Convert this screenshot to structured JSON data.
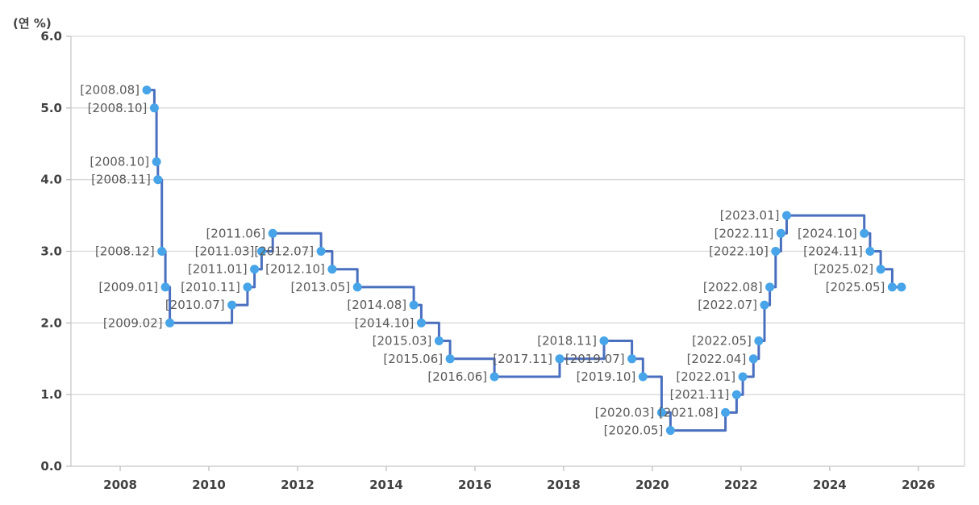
{
  "chart_data": {
    "type": "step-line",
    "title": "",
    "ylabel": "(연 %)",
    "xlabel": "",
    "xlim": [
      2006.89,
      2027.04
    ],
    "ylim": [
      0.0,
      6.0
    ],
    "x_ticks": [
      2008,
      2010,
      2012,
      2014,
      2016,
      2018,
      2020,
      2022,
      2024,
      2026
    ],
    "y_ticks": [
      0,
      1,
      2,
      3,
      4,
      5,
      6
    ],
    "y_tick_labels": [
      "0.0",
      "1.0",
      "2.0",
      "3.0",
      "4.0",
      "5.0",
      "6.0"
    ],
    "grid": "horizontal",
    "legend": "none",
    "colors": {
      "line": "#4A6FBF",
      "marker": "#47A4E8",
      "grid": "#D9D9D9",
      "axis": "#C8C8C8",
      "tick": "#BFBFBF",
      "point_label": "#595959",
      "tick_label": "#404040"
    },
    "points": [
      {
        "label": "[2008.08]",
        "t": 2008.6,
        "value": 5.25
      },
      {
        "label": "[2008.10]",
        "t": 2008.77,
        "value": 5.0
      },
      {
        "label": "[2008.10]",
        "t": 2008.82,
        "value": 4.25
      },
      {
        "label": "[2008.11]",
        "t": 2008.85,
        "value": 4.0
      },
      {
        "label": "[2008.12]",
        "t": 2008.94,
        "value": 3.0
      },
      {
        "label": "[2009.01]",
        "t": 2009.02,
        "value": 2.5
      },
      {
        "label": "[2009.02]",
        "t": 2009.12,
        "value": 2.0
      },
      {
        "label": "[2010.07]",
        "t": 2010.52,
        "value": 2.25
      },
      {
        "label": "[2010.11]",
        "t": 2010.87,
        "value": 2.5
      },
      {
        "label": "[2011.01]",
        "t": 2011.03,
        "value": 2.75
      },
      {
        "label": "[2011.03]",
        "t": 2011.19,
        "value": 3.0
      },
      {
        "label": "[2011.06]",
        "t": 2011.44,
        "value": 3.25
      },
      {
        "label": "[2012.07]",
        "t": 2012.53,
        "value": 3.0
      },
      {
        "label": "[2012.10]",
        "t": 2012.78,
        "value": 2.75
      },
      {
        "label": "[2013.05]",
        "t": 2013.35,
        "value": 2.5
      },
      {
        "label": "[2014.08]",
        "t": 2014.62,
        "value": 2.25
      },
      {
        "label": "[2014.10]",
        "t": 2014.79,
        "value": 2.0
      },
      {
        "label": "[2015.03]",
        "t": 2015.19,
        "value": 1.75
      },
      {
        "label": "[2015.06]",
        "t": 2015.44,
        "value": 1.5
      },
      {
        "label": "[2016.06]",
        "t": 2016.44,
        "value": 1.25
      },
      {
        "label": "[2017.11]",
        "t": 2017.91,
        "value": 1.5
      },
      {
        "label": "[2018.11]",
        "t": 2018.91,
        "value": 1.75
      },
      {
        "label": "[2019.07]",
        "t": 2019.54,
        "value": 1.5
      },
      {
        "label": "[2019.10]",
        "t": 2019.79,
        "value": 1.25
      },
      {
        "label": "[2020.03]",
        "t": 2020.21,
        "value": 0.75
      },
      {
        "label": "[2020.05]",
        "t": 2020.41,
        "value": 0.5
      },
      {
        "label": "[2021.08]",
        "t": 2021.65,
        "value": 0.75
      },
      {
        "label": "[2021.11]",
        "t": 2021.9,
        "value": 1.0
      },
      {
        "label": "[2022.01]",
        "t": 2022.04,
        "value": 1.25
      },
      {
        "label": "[2022.04]",
        "t": 2022.28,
        "value": 1.5
      },
      {
        "label": "[2022.05]",
        "t": 2022.4,
        "value": 1.75
      },
      {
        "label": "[2022.07]",
        "t": 2022.53,
        "value": 2.25
      },
      {
        "label": "[2022.08]",
        "t": 2022.65,
        "value": 2.5
      },
      {
        "label": "[2022.10]",
        "t": 2022.78,
        "value": 3.0
      },
      {
        "label": "[2022.11]",
        "t": 2022.9,
        "value": 3.25
      },
      {
        "label": "[2023.01]",
        "t": 2023.03,
        "value": 3.5
      },
      {
        "label": "[2024.10]",
        "t": 2024.78,
        "value": 3.25
      },
      {
        "label": "[2024.11]",
        "t": 2024.91,
        "value": 3.0
      },
      {
        "label": "[2025.02]",
        "t": 2025.15,
        "value": 2.75
      },
      {
        "label": "[2025.05]",
        "t": 2025.41,
        "value": 2.5
      }
    ],
    "latest_point": {
      "t": 2025.62,
      "value": 2.5
    }
  }
}
